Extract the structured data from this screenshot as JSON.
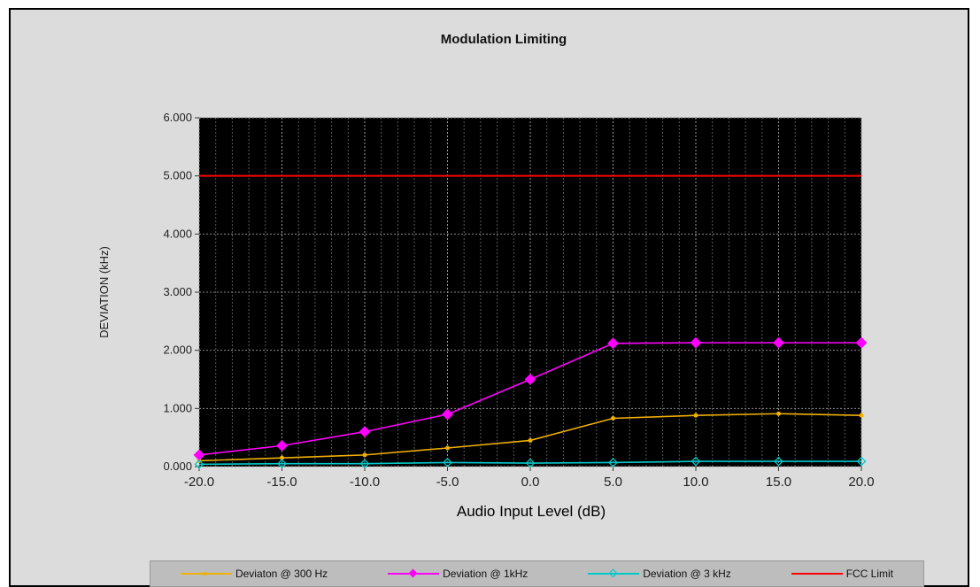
{
  "chart_data": {
    "type": "line",
    "title": "Modulation Limiting",
    "xlabel": "Audio Input Level (dB)",
    "ylabel": "DEVIATION (kHz)",
    "x": [
      -20,
      -15,
      -10,
      -5,
      0,
      5,
      10,
      15,
      20
    ],
    "x_tick_labels": [
      "-20.0",
      "-15.0",
      "-10.0",
      "-5.0",
      "0.0",
      "5.0",
      "10.0",
      "15.0",
      "20.0"
    ],
    "y_tick_labels": [
      "0.000",
      "1.000",
      "2.000",
      "3.000",
      "4.000",
      "5.000",
      "6.000"
    ],
    "xlim": [
      -20,
      20
    ],
    "ylim": [
      0,
      6
    ],
    "grid": true,
    "legend_position": "bottom",
    "series": [
      {
        "name": "Deviaton @ 300 Hz",
        "color": "#f0b000",
        "marker": "dot",
        "values": [
          0.1,
          0.15,
          0.2,
          0.32,
          0.45,
          0.83,
          0.88,
          0.91,
          0.88
        ]
      },
      {
        "name": "Deviation @ 1kHz",
        "color": "#ff00ff",
        "marker": "diamond",
        "values": [
          0.2,
          0.36,
          0.6,
          0.9,
          1.5,
          2.12,
          2.13,
          2.13,
          2.13
        ]
      },
      {
        "name": "Deviation @ 3 kHz",
        "color": "#00c8c8",
        "marker": "diamond-open",
        "values": [
          0.04,
          0.05,
          0.05,
          0.07,
          0.06,
          0.07,
          0.09,
          0.09,
          0.09
        ]
      },
      {
        "name": "FCC Limit",
        "color": "#ff0000",
        "marker": "none",
        "values": [
          5,
          5,
          5,
          5,
          5,
          5,
          5,
          5,
          5
        ]
      }
    ]
  }
}
